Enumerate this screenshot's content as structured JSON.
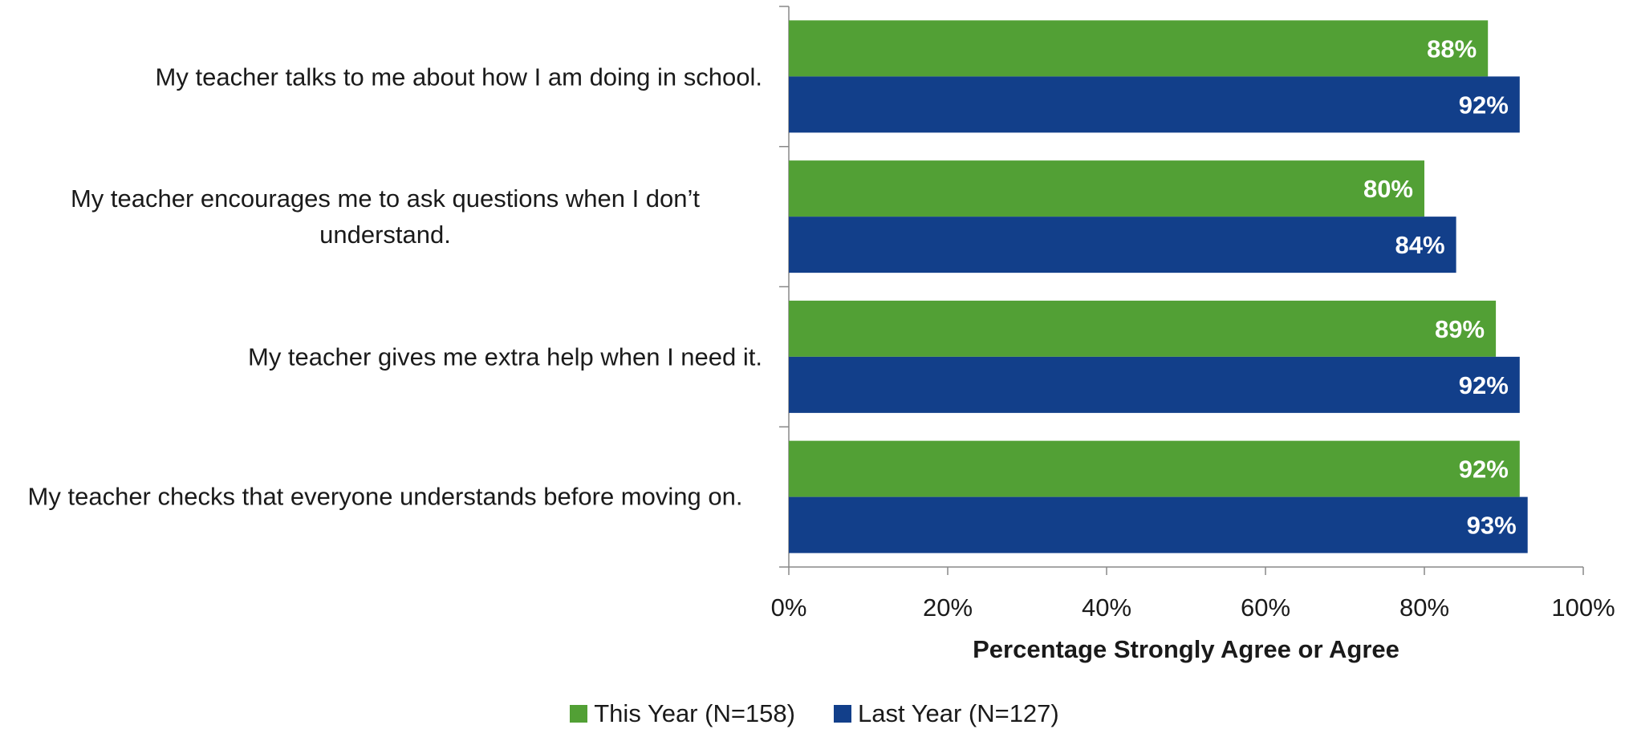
{
  "chart_data": {
    "type": "bar",
    "orientation": "horizontal",
    "categories": [
      "My teacher talks to me about how I am doing in school.",
      "My teacher encourages me to ask questions when I don’t understand.",
      "My teacher gives me extra help when I need it.",
      "My teacher checks that everyone understands before moving on."
    ],
    "series": [
      {
        "name": "This Year (N=158)",
        "color": "#52a035",
        "values": [
          88,
          80,
          89,
          92
        ],
        "labels": [
          "88%",
          "80%",
          "89%",
          "92%"
        ]
      },
      {
        "name": "Last Year (N=127)",
        "color": "#123f8a",
        "values": [
          92,
          84,
          92,
          93
        ],
        "labels": [
          "92%",
          "84%",
          "92%",
          "93%"
        ]
      }
    ],
    "xlabel": "Percentage Strongly Agree or Agree",
    "xlim": [
      0,
      100
    ],
    "xticks": [
      "0%",
      "20%",
      "40%",
      "60%",
      "80%",
      "100%"
    ],
    "legend_position": "bottom",
    "grid": false
  }
}
